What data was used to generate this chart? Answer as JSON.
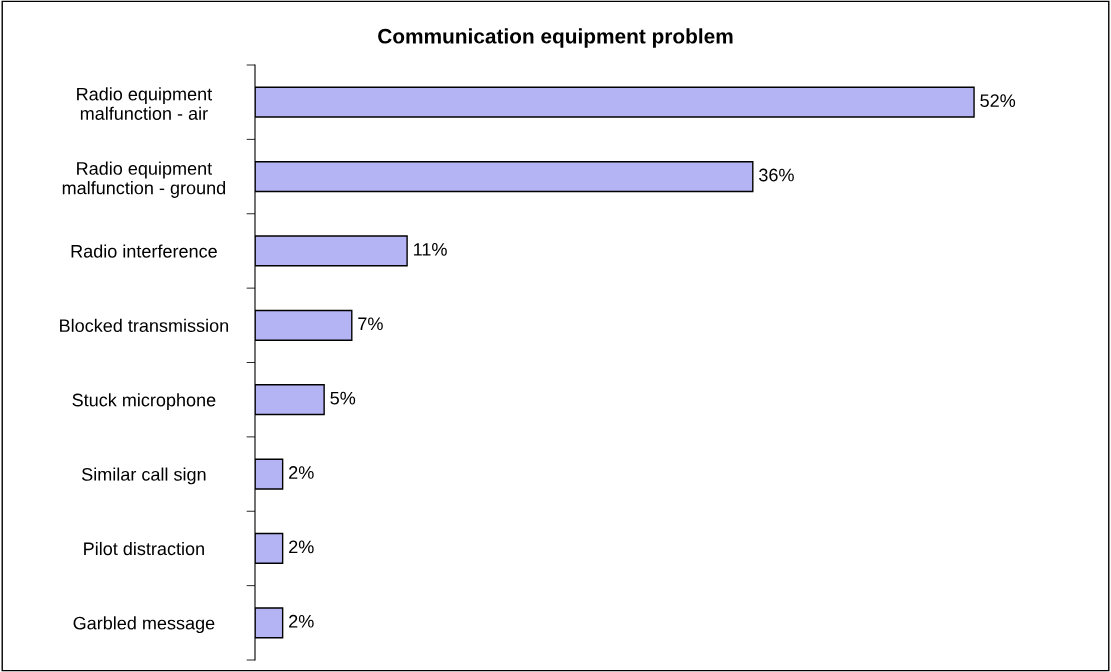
{
  "chart_data": {
    "type": "bar",
    "orientation": "horizontal",
    "title": "Communication equipment problem",
    "categories": [
      "Radio equipment\nmalfunction - air",
      "Radio equipment\nmalfunction - ground",
      "Radio interference",
      "Blocked transmission",
      "Stuck microphone",
      "Similar call sign",
      "Pilot distraction",
      "Garbled message"
    ],
    "values": [
      52,
      36,
      11,
      7,
      5,
      2,
      2,
      2
    ],
    "value_labels": [
      "52%",
      "36%",
      "11%",
      "7%",
      "5%",
      "2%",
      "2%",
      "2%"
    ],
    "color": "#b4b4f4",
    "tick_labels": "y",
    "grid": false,
    "legend": false
  }
}
